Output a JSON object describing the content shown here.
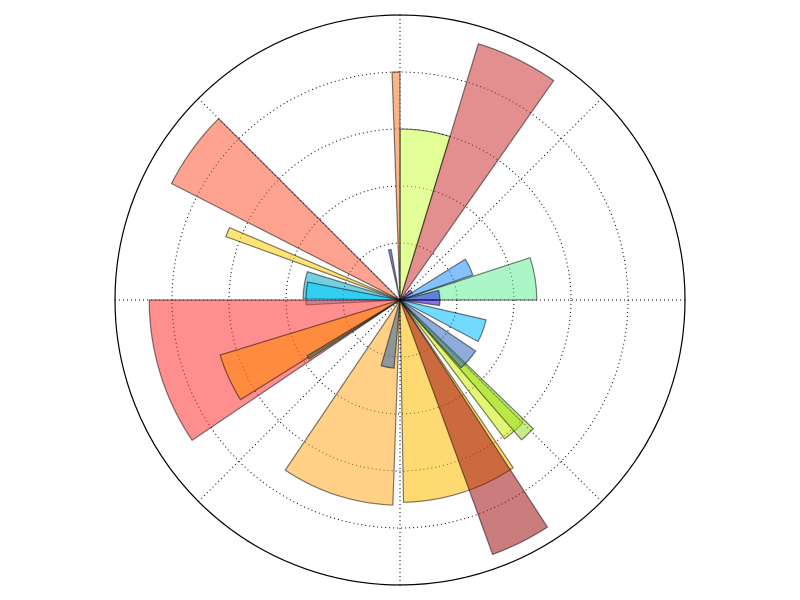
{
  "chart_data": {
    "type": "polar-bar",
    "title": "",
    "theta_unit": "degrees",
    "theta_zero": "east",
    "theta_direction": "counterclockwise",
    "r_range": [
      0,
      10
    ],
    "r_grid": [
      2,
      4,
      6,
      8
    ],
    "theta_grid": [
      0,
      45,
      90,
      135,
      180,
      225,
      270,
      315
    ],
    "grid": true,
    "legend": "none",
    "bars": [
      {
        "start": 0,
        "end": 18,
        "r": 4.8,
        "color": "#66ee99"
      },
      {
        "start": 0,
        "end": 14,
        "r": 1.4,
        "color": "#2222ee"
      },
      {
        "start": 19,
        "end": 32,
        "r": 2.7,
        "color": "#1e90ff"
      },
      {
        "start": 30,
        "end": 45,
        "r": 0.5,
        "color": "#6600aa"
      },
      {
        "start": 55,
        "end": 73,
        "r": 9.4,
        "color": "#cc3333"
      },
      {
        "start": 73,
        "end": 90,
        "r": 6.0,
        "color": "#ccff44"
      },
      {
        "start": 90,
        "end": 92,
        "r": 8.0,
        "color": "#ff7722"
      },
      {
        "start": 100,
        "end": 103,
        "r": 1.8,
        "color": "#1133dd"
      },
      {
        "start": 135,
        "end": 153,
        "r": 9.0,
        "color": "#ff5533"
      },
      {
        "start": 157,
        "end": 160,
        "r": 6.5,
        "color": "#ffcc00"
      },
      {
        "start": 163,
        "end": 179,
        "r": 3.4,
        "color": "#00aacc"
      },
      {
        "start": 169,
        "end": 183,
        "r": 3.3,
        "color": "#00ccff"
      },
      {
        "start": 180,
        "end": 214,
        "r": 8.8,
        "color": "#ff3333"
      },
      {
        "start": 197,
        "end": 212,
        "r": 6.6,
        "color": "#ff8800"
      },
      {
        "start": 211,
        "end": 213,
        "r": 3.8,
        "color": "#448866"
      },
      {
        "start": 236,
        "end": 268,
        "r": 7.2,
        "color": "#ffaa22"
      },
      {
        "start": 254,
        "end": 265,
        "r": 2.4,
        "color": "#3366aa"
      },
      {
        "start": 271,
        "end": 304,
        "r": 7.1,
        "color": "#ffbb00"
      },
      {
        "start": 290,
        "end": 303,
        "r": 9.5,
        "color": "#a01010"
      },
      {
        "start": 307,
        "end": 315,
        "r": 6.1,
        "color": "#ccee00"
      },
      {
        "start": 311,
        "end": 316,
        "r": 6.5,
        "color": "#99dd22"
      },
      {
        "start": 312,
        "end": 326,
        "r": 3.2,
        "color": "#3366bb"
      },
      {
        "start": 332,
        "end": 347,
        "r": 3.1,
        "color": "#00bbff"
      },
      {
        "start": 352,
        "end": 360,
        "r": 1.4,
        "color": "#2200dd"
      }
    ]
  }
}
